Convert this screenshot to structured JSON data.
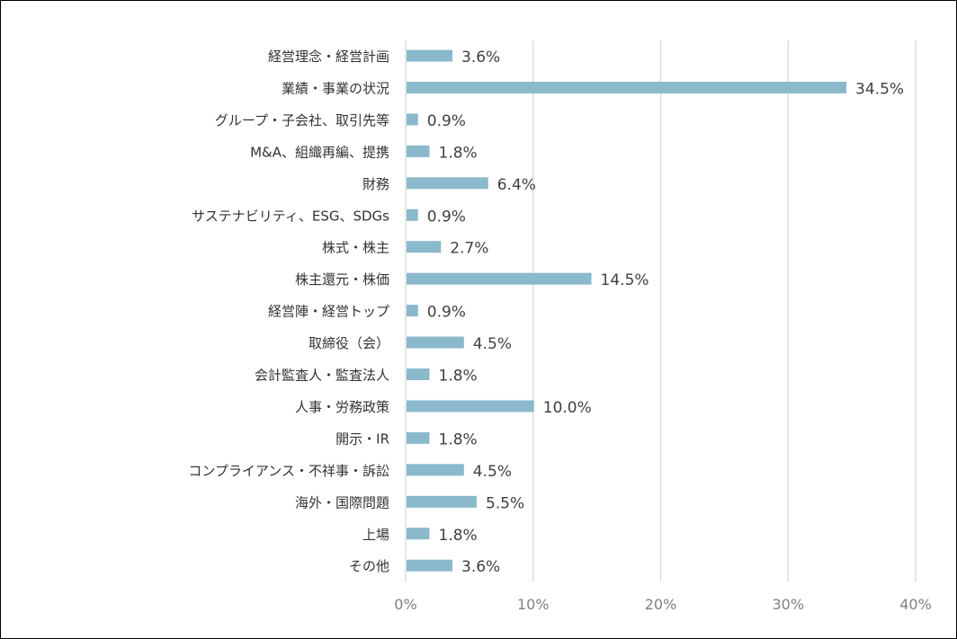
{
  "chart_data": {
    "type": "bar",
    "orientation": "horizontal",
    "categories": [
      "経営理念・経営計画",
      "業績・事業の状況",
      "グループ・子会社、取引先等",
      "M&A、組織再編、提携",
      "財務",
      "サステナビリティ、ESG、SDGs",
      "株式・株主",
      "株主還元・株価",
      "経営陣・経営トップ",
      "取締役（会）",
      "会計監査人・監査法人",
      "人事・労務政策",
      "開示・IR",
      "コンプライアンス・不祥事・訴訟",
      "海外・国際問題",
      "上場",
      "その他"
    ],
    "values": [
      3.6,
      34.5,
      0.9,
      1.8,
      6.4,
      0.9,
      2.7,
      14.5,
      0.9,
      4.5,
      1.8,
      10.0,
      1.8,
      4.5,
      5.5,
      1.8,
      3.6
    ],
    "value_labels": [
      "3.6%",
      "34.5%",
      "0.9%",
      "1.8%",
      "6.4%",
      "0.9%",
      "2.7%",
      "14.5%",
      "0.9%",
      "4.5%",
      "1.8%",
      "10.0%",
      "1.8%",
      "4.5%",
      "5.5%",
      "1.8%",
      "3.6%"
    ],
    "xlim": [
      0,
      40
    ],
    "x_ticks": [
      0,
      10,
      20,
      30,
      40
    ],
    "x_tick_labels": [
      "0%",
      "10%",
      "20%",
      "30%",
      "40%"
    ],
    "grid": true,
    "bar_color": "#8ab9cc",
    "title": "",
    "xlabel": "",
    "ylabel": ""
  }
}
